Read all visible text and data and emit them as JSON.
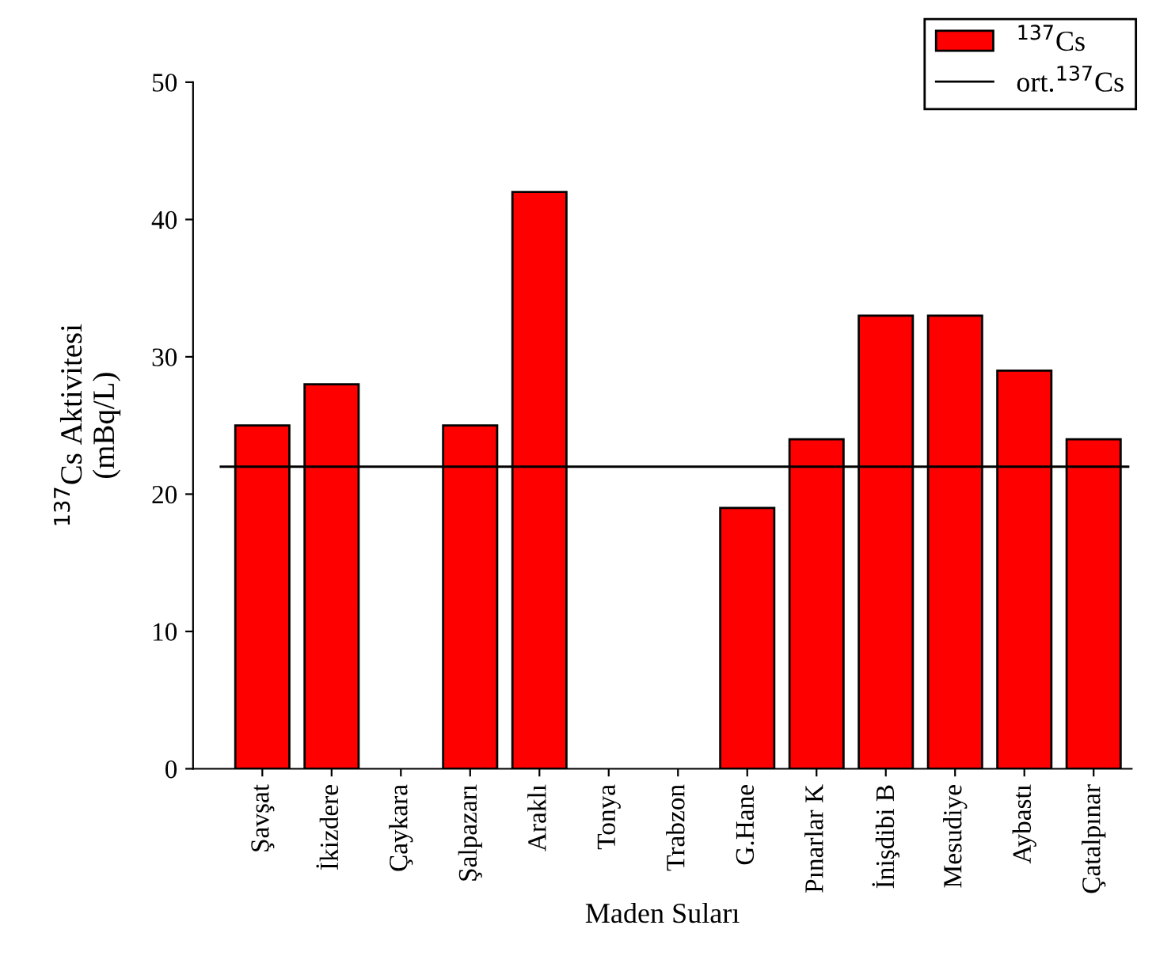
{
  "chart_data": {
    "type": "bar",
    "xlabel": "Maden Suları",
    "ylabel": "$^{137}$Cs Aktivitesi\n(mBq/L)",
    "categories": [
      "Şavşat",
      "İkizdere",
      "Çaykara",
      "Şalpazarı",
      "Araklı",
      "Tonya",
      "Trabzon",
      "G.Hane",
      "Pınarlar K",
      "İnişdibi B",
      "Mesudiye",
      "Aybastı",
      "Çatalpınar"
    ],
    "series": [
      {
        "name": "$^{137}$Cs",
        "color": "#ff0000",
        "values": [
          25,
          28,
          null,
          25,
          42,
          null,
          null,
          19,
          24,
          33,
          33,
          29,
          24
        ]
      }
    ],
    "ref_lines": [
      {
        "axis": "y",
        "value": 22,
        "label": "ort.$^{137}$Cs",
        "color": "#000000",
        "line_style": "solid"
      }
    ],
    "ylim": [
      0,
      50
    ],
    "yticks": [
      0,
      10,
      20,
      30,
      40,
      50
    ],
    "grid": false,
    "legend": "top right"
  }
}
